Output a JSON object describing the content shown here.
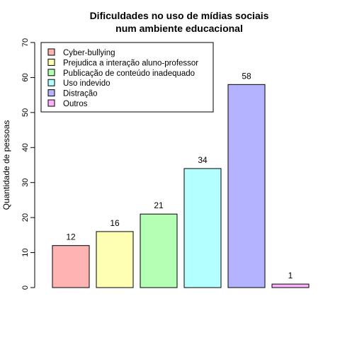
{
  "chart_data": {
    "type": "bar",
    "title_line1": "Dificuldades no uso de mídias sociais",
    "title_line2": "num ambiente educacional",
    "xlabel": "",
    "ylabel": "Quantidade de pessoas",
    "ylim": [
      0,
      70
    ],
    "yticks": [
      "0",
      "10",
      "20",
      "30",
      "40",
      "50",
      "60",
      "70"
    ],
    "categories": [
      "Cyber-bullying",
      "Prejudica a interação aluno-professor",
      "Publicação de conteúdo inadequado",
      "Uso indevido",
      "Distração",
      "Outros"
    ],
    "values": [
      12,
      16,
      21,
      34,
      58,
      1
    ],
    "value_labels": [
      "12",
      "16",
      "21",
      "34",
      "58",
      "1"
    ],
    "colors": [
      "#FFB3B3",
      "#FFFFB3",
      "#B3FFB3",
      "#B3FFFF",
      "#B3B3FF",
      "#FFB3FF"
    ],
    "grid": false,
    "legend_position": "top-left"
  }
}
